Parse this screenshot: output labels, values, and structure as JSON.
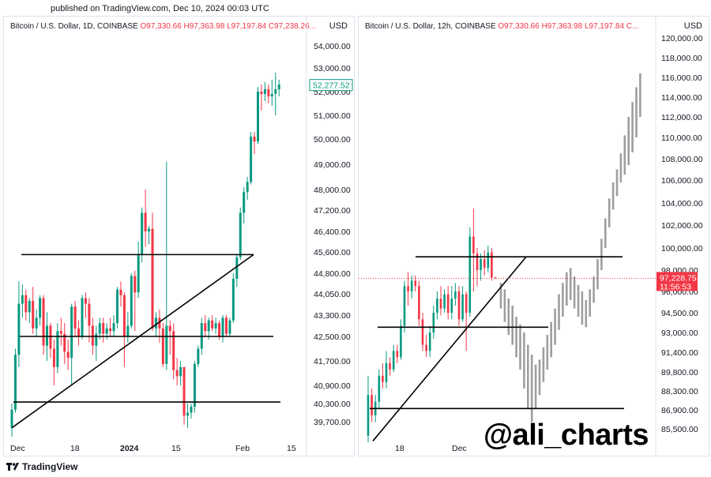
{
  "published_line": "published on TradingView.com, Dec 10, 2024 00:03 UTC",
  "footer": {
    "brand": "TradingView"
  },
  "watermark": "@ali_charts",
  "colors": {
    "up": "#089981",
    "down": "#f23645",
    "projection": "#9e9e9e",
    "line": "#000000"
  },
  "chart_data": [
    {
      "type": "candlestick",
      "symbol": "Bitcoin / U.S. Dollar, 1D, COINBASE",
      "ohlc_header": {
        "o": "O97,330.66",
        "h": "H97,363.98",
        "l": "L97,197.84",
        "c": "C97,238.26..."
      },
      "currency": "USD",
      "price_ticks": [
        "54,000.00",
        "53,000.00",
        "52,000.00",
        "51,000.00",
        "50,000.00",
        "49,000.00",
        "48,000.00",
        "47,200.00",
        "46,400.00",
        "45,600.00",
        "44,800.00",
        "44,050.00",
        "43,300.00",
        "42,500.00",
        "41,700.00",
        "40,900.00",
        "40,300.00",
        "39,700.00"
      ],
      "tick_values": [
        54000,
        53000,
        52000,
        51000,
        50000,
        49000,
        48000,
        47200,
        46400,
        45600,
        44800,
        44050,
        43300,
        42500,
        41700,
        40900,
        40300,
        39700
      ],
      "price_label": "52,277.52",
      "time_labels": [
        "Dec",
        "18",
        "2024",
        "15",
        "Feb",
        "15"
      ],
      "candles": [
        [
          39500,
          40100,
          39200,
          40300
        ],
        [
          40100,
          41900,
          40000,
          42100
        ],
        [
          41900,
          43700,
          41500,
          44500
        ],
        [
          43700,
          44000,
          43200,
          44400
        ],
        [
          44000,
          43400,
          43100,
          44200
        ],
        [
          43400,
          43800,
          43000,
          43900
        ],
        [
          43800,
          42800,
          42600,
          44300
        ],
        [
          42800,
          43200,
          42500,
          43500
        ],
        [
          43200,
          43900,
          42900,
          44000
        ],
        [
          43900,
          42200,
          41900,
          44000
        ],
        [
          42200,
          42900,
          41700,
          43400
        ],
        [
          42900,
          42100,
          41800,
          43000
        ],
        [
          42100,
          41500,
          40900,
          42400
        ],
        [
          41500,
          42700,
          41300,
          43000
        ],
        [
          42700,
          42600,
          42200,
          43200
        ],
        [
          42600,
          42000,
          41600,
          43000
        ],
        [
          42000,
          41800,
          41400,
          42400
        ],
        [
          41800,
          43600,
          40900,
          43700
        ],
        [
          43600,
          42800,
          42500,
          43800
        ],
        [
          42800,
          42500,
          42200,
          43100
        ],
        [
          42500,
          43900,
          42400,
          44000
        ],
        [
          43900,
          43700,
          43200,
          44100
        ],
        [
          43700,
          42900,
          42300,
          43900
        ],
        [
          42900,
          42200,
          41900,
          43200
        ],
        [
          42200,
          42600,
          41700,
          42900
        ],
        [
          42600,
          43000,
          42400,
          43200
        ],
        [
          43000,
          42600,
          42300,
          43200
        ],
        [
          42600,
          42800,
          42400,
          43000
        ],
        [
          42800,
          42700,
          42500,
          43200
        ],
        [
          42700,
          43000,
          42500,
          43300
        ],
        [
          43000,
          44200,
          42800,
          44300
        ],
        [
          44200,
          44000,
          43600,
          44500
        ],
        [
          44000,
          42500,
          41500,
          44100
        ],
        [
          42500,
          42900,
          42300,
          43400
        ],
        [
          42900,
          44700,
          42800,
          44800
        ],
        [
          44700,
          44100,
          42700,
          44900
        ],
        [
          44100,
          45500,
          43900,
          46000
        ],
        [
          45500,
          47100,
          45200,
          47300
        ],
        [
          47100,
          46400,
          45800,
          48000
        ],
        [
          46400,
          46500,
          45900,
          46600
        ],
        [
          46500,
          42800,
          42700,
          47100
        ],
        [
          42800,
          43200,
          42500,
          43400
        ],
        [
          43200,
          42800,
          42300,
          43500
        ],
        [
          42800,
          41600,
          41500,
          43000
        ],
        [
          41600,
          42900,
          41400,
          49100
        ],
        [
          42900,
          42700,
          41900,
          43100
        ],
        [
          42700,
          41400,
          41100,
          43000
        ],
        [
          41400,
          41200,
          40900,
          41800
        ],
        [
          41200,
          41500,
          40900,
          41700
        ],
        [
          41500,
          39900,
          39600,
          41500
        ],
        [
          39900,
          40000,
          39500,
          40300
        ],
        [
          40000,
          40200,
          39800,
          40300
        ],
        [
          40200,
          41600,
          40000,
          41700
        ],
        [
          41600,
          42100,
          41500,
          42200
        ],
        [
          42100,
          43000,
          41900,
          43200
        ],
        [
          43000,
          42700,
          42500,
          43300
        ],
        [
          42700,
          43100,
          42400,
          43200
        ],
        [
          43100,
          42800,
          42700,
          43300
        ],
        [
          42800,
          43000,
          42600,
          43200
        ],
        [
          43000,
          42500,
          42400,
          43100
        ],
        [
          42500,
          43200,
          42300,
          43300
        ],
        [
          43200,
          42600,
          42500,
          43300
        ],
        [
          42600,
          43100,
          42500,
          43200
        ],
        [
          43100,
          44600,
          43000,
          44800
        ],
        [
          44600,
          45400,
          44300,
          45500
        ],
        [
          45400,
          47100,
          45300,
          47300
        ],
        [
          47100,
          47900,
          46700,
          48100
        ],
        [
          47900,
          48300,
          47600,
          48500
        ],
        [
          48300,
          50100,
          48200,
          50300
        ],
        [
          50100,
          49900,
          49400,
          50300
        ],
        [
          49900,
          52000,
          49800,
          52200
        ],
        [
          52000,
          51900,
          51200,
          52300
        ],
        [
          51900,
          52100,
          51600,
          52400
        ],
        [
          52100,
          51800,
          51500,
          52300
        ],
        [
          51800,
          51900,
          51400,
          52500
        ],
        [
          51900,
          52100,
          51000,
          52800
        ],
        [
          52100,
          52300,
          51800,
          52500
        ]
      ]
    },
    {
      "type": "candlestick",
      "symbol": "Bitcoin / U.S. Dollar, 12h, COINBASE",
      "ohlc_header": {
        "o": "O97,330.66",
        "h": "H97,363.98",
        "l": "L97,197.84",
        "c": "C..."
      },
      "currency": "USD",
      "price_ticks": [
        "120,000.00",
        "118,000.00",
        "116,000.00",
        "114,000.00",
        "112,000.00",
        "110,000.00",
        "108,000.00",
        "106,000.00",
        "104,000.00",
        "102,000.00",
        "100,000.00",
        "98,000.00",
        "96,000.00",
        "94,500.00",
        "93,000.00",
        "91,400.00",
        "89,800.00",
        "88,300.00",
        "86,900.00",
        "85,500.00"
      ],
      "tick_values": [
        120000,
        118000,
        116000,
        114000,
        112000,
        110000,
        108000,
        106000,
        104000,
        102000,
        100000,
        98000,
        96000,
        94500,
        93000,
        91400,
        89800,
        88300,
        86900,
        85500
      ],
      "price_label": "97,228.75",
      "countdown_label": "11:56:53",
      "time_labels": [
        "18",
        "Dec"
      ],
      "candles": [
        [
          85000,
          88000,
          84500,
          89500
        ],
        [
          88000,
          86500,
          86000,
          88500
        ],
        [
          86500,
          87500,
          86000,
          88000
        ],
        [
          87500,
          89500,
          87000,
          90000
        ],
        [
          89500,
          89000,
          88500,
          90500
        ],
        [
          89000,
          90500,
          88500,
          91500
        ],
        [
          90500,
          90000,
          89500,
          91000
        ],
        [
          90000,
          91500,
          89800,
          92000
        ],
        [
          91500,
          91000,
          90500,
          92000
        ],
        [
          91000,
          93500,
          90800,
          94000
        ],
        [
          93500,
          96500,
          93000,
          97000
        ],
        [
          96500,
          96000,
          95000,
          97800
        ],
        [
          96000,
          97000,
          95500,
          97500
        ],
        [
          97000,
          96500,
          96000,
          97500
        ],
        [
          96500,
          94000,
          93500,
          97000
        ],
        [
          94000,
          92000,
          91500,
          94500
        ],
        [
          92000,
          91500,
          91000,
          92800
        ],
        [
          91500,
          93000,
          91000,
          93500
        ],
        [
          93000,
          94500,
          92500,
          95000
        ],
        [
          94500,
          95500,
          94000,
          96000
        ],
        [
          95500,
          94800,
          94300,
          96500
        ],
        [
          94800,
          95800,
          94500,
          96200
        ],
        [
          95800,
          94500,
          94000,
          96500
        ],
        [
          94500,
          95500,
          94000,
          96500
        ],
        [
          95500,
          96000,
          95000,
          96800
        ],
        [
          96000,
          94000,
          93500,
          96500
        ],
        [
          94000,
          95800,
          93800,
          96500
        ],
        [
          95800,
          94500,
          91500,
          96000
        ],
        [
          94500,
          101000,
          94200,
          101800
        ],
        [
          101000,
          99500,
          96000,
          103500
        ],
        [
          99500,
          98000,
          96500,
          100000
        ],
        [
          98000,
          99000,
          97000,
          99500
        ],
        [
          99000,
          98200,
          97500,
          99800
        ],
        [
          98200,
          99600,
          97800,
          100200
        ],
        [
          99600,
          97300,
          97000,
          100000
        ],
        [
          97300,
          97230,
          97190,
          97360
        ]
      ],
      "projection_bars": [
        [
          96800,
          94800
        ],
        [
          96200,
          93800
        ],
        [
          95500,
          92800
        ],
        [
          95000,
          92000
        ],
        [
          94200,
          91000
        ],
        [
          93600,
          90000
        ],
        [
          93000,
          88500
        ],
        [
          92000,
          87000
        ],
        [
          91200,
          86000
        ],
        [
          90400,
          87000
        ],
        [
          90800,
          88000
        ],
        [
          91800,
          89000
        ],
        [
          92800,
          90000
        ],
        [
          93800,
          91000
        ],
        [
          94800,
          92000
        ],
        [
          95800,
          93200
        ],
        [
          96800,
          94200
        ],
        [
          97800,
          95000
        ],
        [
          98200,
          95400
        ],
        [
          97400,
          94800
        ],
        [
          96600,
          94200
        ],
        [
          96000,
          93600
        ],
        [
          95400,
          93400
        ],
        [
          96200,
          94200
        ],
        [
          97400,
          95200
        ],
        [
          99000,
          96200
        ],
        [
          100800,
          98000
        ],
        [
          102600,
          100000
        ],
        [
          104400,
          101800
        ],
        [
          105800,
          103400
        ],
        [
          107000,
          104600
        ],
        [
          108500,
          105800
        ],
        [
          110200,
          106500
        ],
        [
          112000,
          107400
        ],
        [
          113500,
          108600
        ],
        [
          115000,
          110000
        ],
        [
          116400,
          112000
        ]
      ]
    }
  ]
}
